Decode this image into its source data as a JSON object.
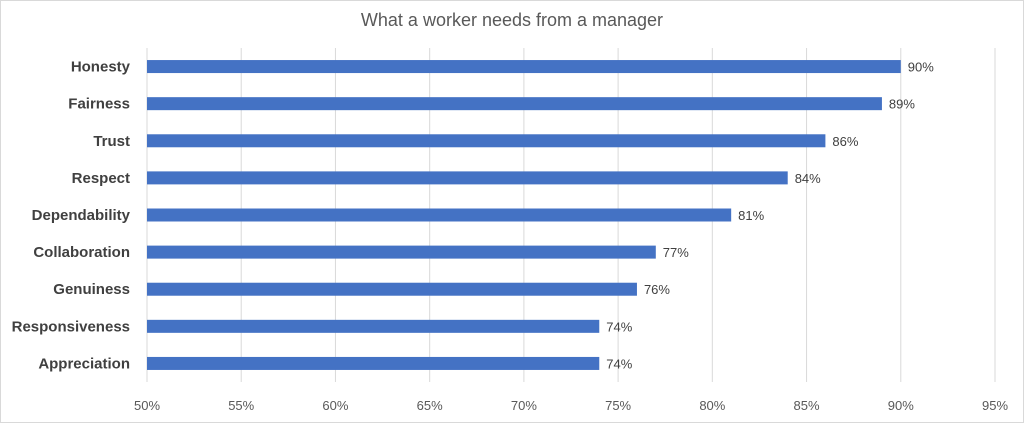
{
  "chart_data": {
    "type": "bar",
    "orientation": "horizontal",
    "title": "What a worker needs from a manager",
    "xlabel": "",
    "ylabel": "",
    "categories": [
      "Honesty",
      "Fairness",
      "Trust",
      "Respect",
      "Dependability",
      "Collaboration",
      "Genuiness",
      "Responsiveness",
      "Appreciation"
    ],
    "values": [
      90,
      89,
      86,
      84,
      81,
      77,
      76,
      74,
      74
    ],
    "data_labels": [
      "90%",
      "89%",
      "86%",
      "84%",
      "81%",
      "77%",
      "76%",
      "74%",
      "74%"
    ],
    "xlim": [
      50,
      95
    ],
    "xticks": [
      50,
      55,
      60,
      65,
      70,
      75,
      80,
      85,
      90,
      95
    ],
    "xtick_labels": [
      "50%",
      "55%",
      "60%",
      "65%",
      "70%",
      "75%",
      "80%",
      "85%",
      "90%",
      "95%"
    ],
    "grid": "vertical",
    "legend": "none",
    "bar_color": "#4472c4"
  }
}
